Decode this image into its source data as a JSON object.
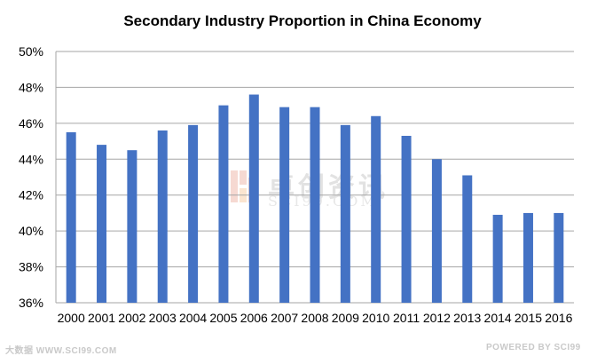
{
  "chart_data": {
    "type": "bar",
    "title": "Secondary Industry Proportion in China Economy",
    "xlabel": "",
    "ylabel": "",
    "categories": [
      "2000",
      "2001",
      "2002",
      "2003",
      "2004",
      "2005",
      "2006",
      "2007",
      "2008",
      "2009",
      "2010",
      "2011",
      "2012",
      "2013",
      "2014",
      "2015",
      "2016"
    ],
    "values": [
      45.5,
      44.8,
      44.5,
      45.6,
      45.9,
      47.0,
      47.6,
      46.9,
      46.9,
      45.9,
      46.4,
      45.3,
      44.0,
      43.1,
      40.9,
      41.0,
      41.0
    ],
    "ylim": [
      36,
      50
    ],
    "yticks": [
      36,
      38,
      40,
      42,
      44,
      46,
      48,
      50
    ],
    "ytick_format": "%",
    "grid": true,
    "legend": "none",
    "bar_color": "#4472C4",
    "grid_color": "#a6a6a6"
  },
  "watermarks": {
    "center_cn": "卓创资讯",
    "center_en": "SCI99.COM",
    "bottom_left": "大数据 WWW.SCI99.COM",
    "bottom_right": "POWERED BY SCI99"
  }
}
